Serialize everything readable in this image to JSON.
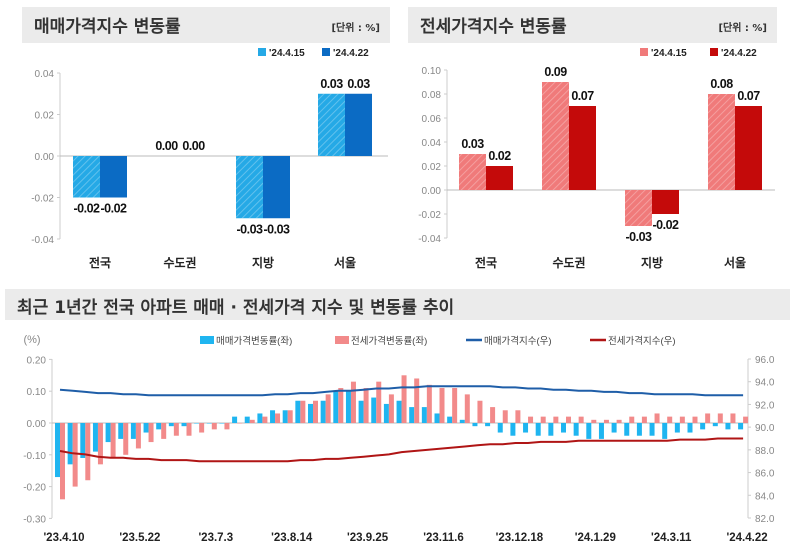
{
  "colors": {
    "sale_light": "#25a9e6",
    "sale_dark": "#0b6bc4",
    "jeonse_light": "#f07a7a",
    "jeonse_dark": "#c40a0a",
    "bottom_sale_bar": "#1fb5f0",
    "bottom_jeonse_bar": "#f28a8a",
    "sale_index_line": "#1f5ea8",
    "jeonse_index_line": "#b01515"
  },
  "chart_data": [
    {
      "type": "bar",
      "title": "매매가격지수 변동률",
      "unit": "[단위 : %]",
      "categories": [
        "전국",
        "수도권",
        "지방",
        "서울"
      ],
      "series": [
        {
          "name": "'24.4.15",
          "values": [
            -0.02,
            0.0,
            -0.03,
            0.03
          ]
        },
        {
          "name": "'24.4.22",
          "values": [
            -0.02,
            0.0,
            -0.03,
            0.03
          ]
        }
      ],
      "yticks": [
        "0.04",
        "0.02",
        "0.00",
        "-0.02",
        "-0.04"
      ],
      "ylim": [
        -0.04,
        0.04
      ],
      "legend": "top-right"
    },
    {
      "type": "bar",
      "title": "전세가격지수 변동률",
      "unit": "[단위 : %]",
      "categories": [
        "전국",
        "수도권",
        "지방",
        "서울"
      ],
      "series": [
        {
          "name": "'24.4.15",
          "values": [
            0.03,
            0.09,
            -0.03,
            0.08
          ]
        },
        {
          "name": "'24.4.22",
          "values": [
            0.02,
            0.07,
            -0.02,
            0.07
          ]
        }
      ],
      "yticks": [
        "0.10",
        "0.08",
        "0.06",
        "0.04",
        "0.02",
        "0.00",
        "-0.02",
        "-0.04"
      ],
      "ylim": [
        -0.04,
        0.1
      ],
      "legend": "top-right"
    },
    {
      "type": "bar+line",
      "title": "최근 1년간 전국 아파트 매매 · 전세가격 지수 및 변동률 추이",
      "ylabel": "(%)",
      "xticks": [
        "'23.4.10",
        "'23.5.22",
        "'23.7.3",
        "'23.8.14",
        "'23.9.25",
        "'23.11.6",
        "'23.12.18",
        "'24.1.29",
        "'24.3.11",
        "'24.4.22"
      ],
      "yticks_left": [
        "0.20",
        "0.10",
        "0.00",
        "-0.10",
        "-0.20",
        "-0.30"
      ],
      "yticks_right": [
        "96.0",
        "94.0",
        "92.0",
        "90.0",
        "88.0",
        "86.0",
        "84.0",
        "82.0"
      ],
      "ylim_left": [
        -0.3,
        0.2
      ],
      "ylim_right": [
        82.0,
        96.0
      ],
      "legend": "top",
      "series": [
        {
          "name": "매매가격변동률(좌)",
          "kind": "bar",
          "axis": "left",
          "values": [
            -0.17,
            -0.13,
            -0.11,
            -0.09,
            -0.06,
            -0.05,
            -0.05,
            -0.03,
            -0.02,
            -0.01,
            -0.01,
            0.0,
            0.0,
            0.0,
            0.02,
            0.02,
            0.03,
            0.04,
            0.04,
            0.07,
            0.06,
            0.07,
            0.1,
            0.1,
            0.07,
            0.08,
            0.06,
            0.07,
            0.05,
            0.05,
            0.03,
            0.02,
            0.01,
            -0.01,
            -0.01,
            -0.03,
            -0.04,
            -0.03,
            -0.04,
            -0.04,
            -0.03,
            -0.04,
            -0.05,
            -0.05,
            -0.03,
            -0.04,
            -0.04,
            -0.04,
            -0.05,
            -0.03,
            -0.03,
            -0.02,
            -0.01,
            -0.02,
            -0.02
          ]
        },
        {
          "name": "전세가격변동률(좌)",
          "kind": "bar",
          "axis": "left",
          "values": [
            -0.24,
            -0.2,
            -0.18,
            -0.13,
            -0.11,
            -0.1,
            -0.08,
            -0.06,
            -0.05,
            -0.04,
            -0.04,
            -0.03,
            -0.02,
            -0.02,
            0.0,
            0.01,
            0.02,
            0.03,
            0.04,
            0.07,
            0.07,
            0.09,
            0.11,
            0.13,
            0.11,
            0.13,
            0.09,
            0.15,
            0.14,
            0.12,
            0.11,
            0.11,
            0.09,
            0.07,
            0.05,
            0.04,
            0.04,
            0.02,
            0.02,
            0.02,
            0.02,
            0.02,
            0.01,
            0.01,
            0.01,
            0.02,
            0.02,
            0.03,
            0.02,
            0.02,
            0.02,
            0.03,
            0.03,
            0.03,
            0.02
          ]
        },
        {
          "name": "매매가격지수(우)",
          "kind": "line",
          "axis": "right",
          "values": [
            93.3,
            93.2,
            93.1,
            93.0,
            93.0,
            92.9,
            92.9,
            92.8,
            92.8,
            92.8,
            92.8,
            92.8,
            92.8,
            92.8,
            92.8,
            92.8,
            92.8,
            92.9,
            92.9,
            93.0,
            93.0,
            93.1,
            93.2,
            93.2,
            93.3,
            93.4,
            93.4,
            93.5,
            93.5,
            93.6,
            93.6,
            93.6,
            93.6,
            93.6,
            93.6,
            93.5,
            93.5,
            93.4,
            93.4,
            93.3,
            93.3,
            93.2,
            93.2,
            93.1,
            93.1,
            93.0,
            93.0,
            92.9,
            92.9,
            92.9,
            92.9,
            92.8,
            92.8,
            92.8,
            92.8
          ]
        },
        {
          "name": "전세가격지수(우)",
          "kind": "line",
          "axis": "right",
          "values": [
            87.9,
            87.7,
            87.6,
            87.4,
            87.3,
            87.3,
            87.2,
            87.2,
            87.1,
            87.1,
            87.1,
            87.0,
            87.0,
            87.0,
            87.0,
            87.0,
            87.0,
            87.0,
            87.0,
            87.1,
            87.1,
            87.2,
            87.2,
            87.3,
            87.4,
            87.5,
            87.6,
            87.8,
            87.9,
            88.0,
            88.1,
            88.2,
            88.3,
            88.4,
            88.5,
            88.5,
            88.6,
            88.6,
            88.7,
            88.7,
            88.7,
            88.8,
            88.8,
            88.8,
            88.8,
            88.8,
            88.8,
            88.8,
            88.8,
            88.9,
            88.9,
            88.9,
            89.0,
            89.0,
            89.0
          ]
        }
      ]
    }
  ]
}
